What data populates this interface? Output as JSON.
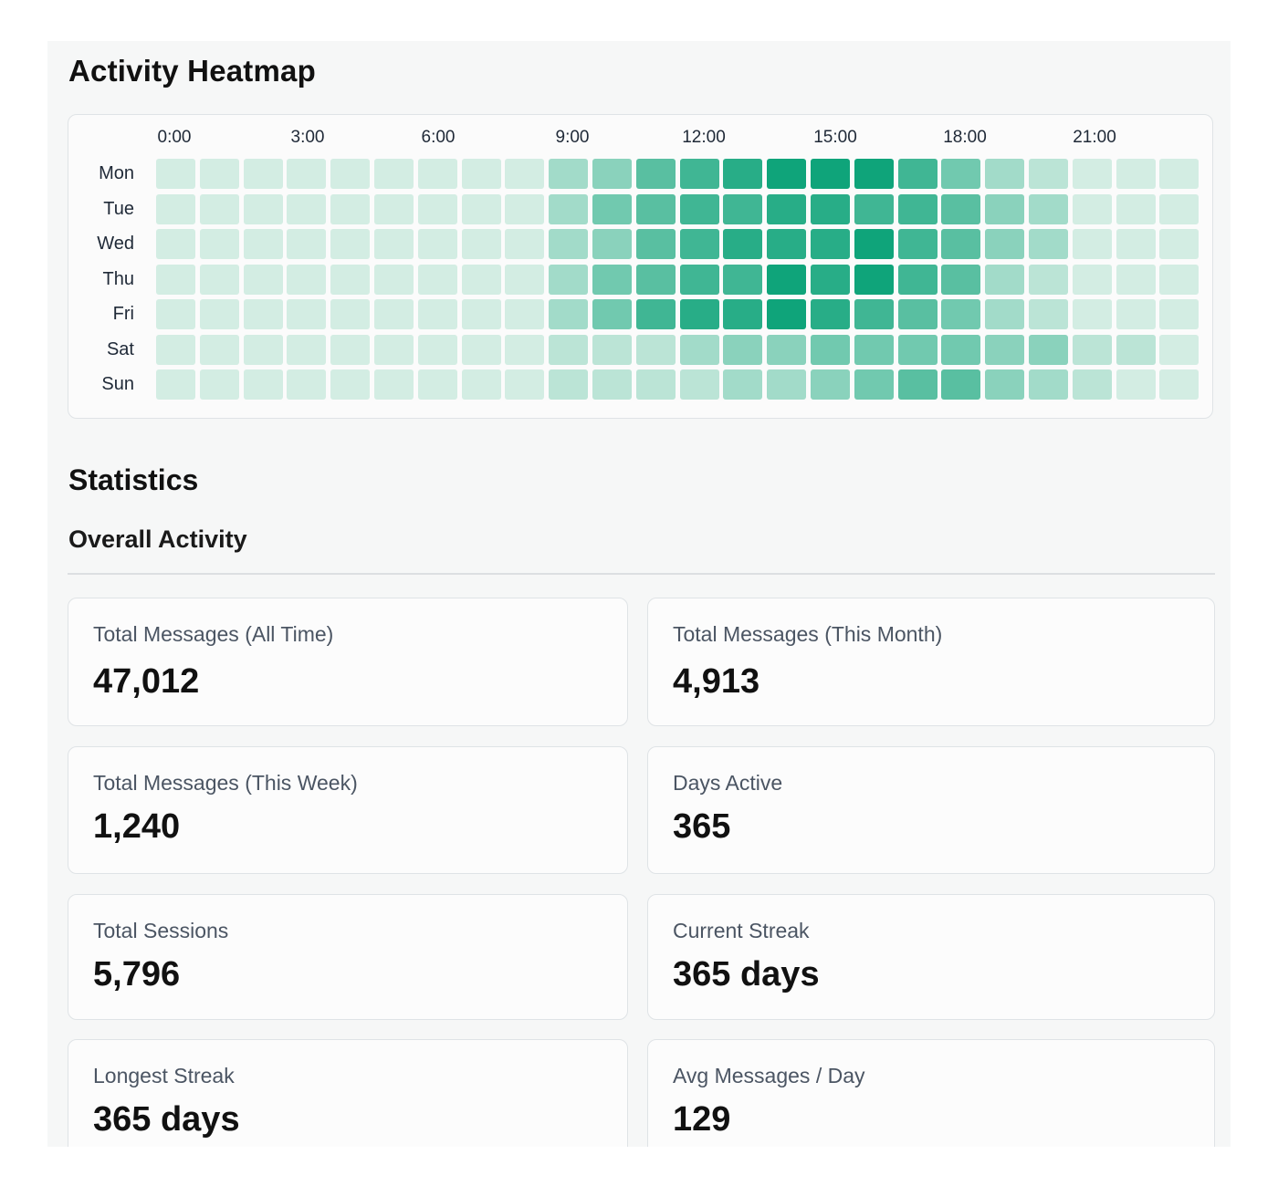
{
  "heatmap": {
    "title": "Activity Heatmap",
    "hour_labels": [
      "0:00",
      "3:00",
      "6:00",
      "9:00",
      "12:00",
      "15:00",
      "18:00",
      "21:00"
    ],
    "days": [
      "Mon",
      "Tue",
      "Wed",
      "Thu",
      "Fri",
      "Sat",
      "Sun"
    ],
    "colors": {
      "low": "#d3ede3",
      "high": "#0fa47a"
    },
    "intensity": [
      [
        1,
        1,
        1,
        1,
        1,
        1,
        1,
        1,
        1,
        3,
        4,
        6,
        7,
        8,
        9,
        9,
        9,
        7,
        5,
        3,
        2,
        1,
        1,
        1
      ],
      [
        1,
        1,
        1,
        1,
        1,
        1,
        1,
        1,
        1,
        3,
        5,
        6,
        7,
        7,
        8,
        8,
        7,
        7,
        6,
        4,
        3,
        1,
        1,
        1
      ],
      [
        1,
        1,
        1,
        1,
        1,
        1,
        1,
        1,
        1,
        3,
        4,
        6,
        7,
        8,
        8,
        8,
        9,
        7,
        6,
        4,
        3,
        1,
        1,
        1
      ],
      [
        1,
        1,
        1,
        1,
        1,
        1,
        1,
        1,
        1,
        3,
        5,
        6,
        7,
        7,
        9,
        8,
        9,
        7,
        6,
        3,
        2,
        1,
        1,
        1
      ],
      [
        1,
        1,
        1,
        1,
        1,
        1,
        1,
        1,
        1,
        3,
        5,
        7,
        8,
        8,
        9,
        8,
        7,
        6,
        5,
        3,
        2,
        1,
        1,
        1
      ],
      [
        1,
        1,
        1,
        1,
        1,
        1,
        1,
        1,
        1,
        2,
        2,
        2,
        3,
        4,
        4,
        5,
        5,
        5,
        5,
        4,
        4,
        2,
        2,
        1
      ],
      [
        1,
        1,
        1,
        1,
        1,
        1,
        1,
        1,
        1,
        2,
        2,
        2,
        2,
        3,
        3,
        4,
        5,
        6,
        6,
        4,
        3,
        2,
        1,
        1
      ]
    ]
  },
  "statistics": {
    "title": "Statistics",
    "section_title": "Overall Activity",
    "cards": [
      {
        "label": "Total Messages (All Time)",
        "value": "47,012"
      },
      {
        "label": "Total Messages (This Month)",
        "value": "4,913"
      },
      {
        "label": "Total Messages (This Week)",
        "value": "1,240"
      },
      {
        "label": "Days Active",
        "value": "365"
      },
      {
        "label": "Total Sessions",
        "value": "5,796"
      },
      {
        "label": "Current Streak",
        "value": "365 days"
      },
      {
        "label": "Longest Streak",
        "value": "365 days"
      },
      {
        "label": "Avg Messages / Day",
        "value": "129"
      }
    ]
  }
}
